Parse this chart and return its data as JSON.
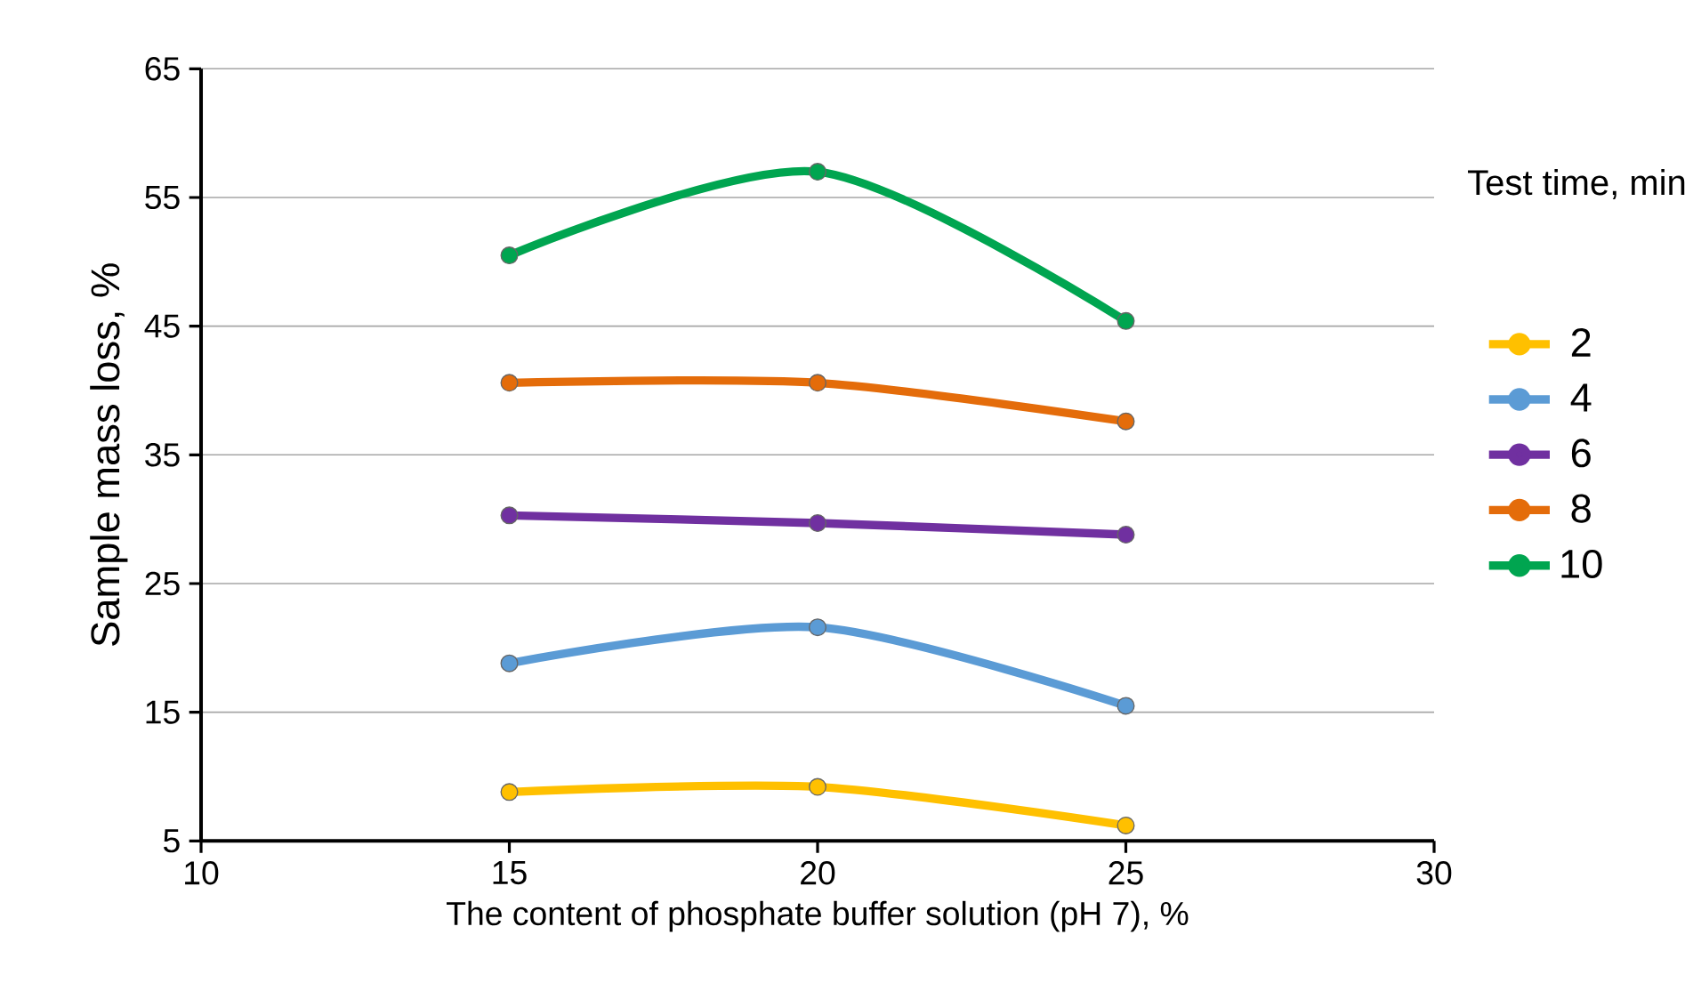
{
  "chart_data": {
    "type": "line",
    "xlabel": "The content of phosphate buffer solution (pH 7), %",
    "ylabel": "Sample mass loss, %",
    "legend_title": "Test time, min",
    "x": [
      15,
      20,
      25
    ],
    "series": [
      {
        "name": "2",
        "color": "#ffc000",
        "values": [
          8.8,
          9.2,
          6.2
        ]
      },
      {
        "name": "4",
        "color": "#5b9bd5",
        "values": [
          18.8,
          21.6,
          15.5
        ]
      },
      {
        "name": "6",
        "color": "#7030a0",
        "values": [
          30.3,
          29.7,
          28.8
        ]
      },
      {
        "name": "8",
        "color": "#e46c0a",
        "values": [
          40.6,
          40.6,
          37.6
        ]
      },
      {
        "name": "10",
        "color": "#00a550",
        "values": [
          50.5,
          57.0,
          45.4
        ]
      }
    ],
    "xlim": [
      10,
      30
    ],
    "xticks": [
      10,
      15,
      20,
      25,
      30
    ],
    "ylim": [
      5,
      65
    ],
    "yticks": [
      5,
      15,
      25,
      35,
      45,
      55,
      65
    ],
    "grid": "y",
    "legend": "right",
    "marker": "circle",
    "line_style": "solid"
  }
}
